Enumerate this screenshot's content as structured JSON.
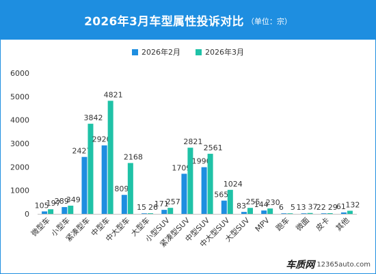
{
  "header": {
    "title": "2026年3月车型属性投诉对比",
    "unit": "（单位：宗）"
  },
  "colors": {
    "header_bg": "#1e8ee0",
    "series_feb": "#1e8ee0",
    "series_mar": "#1fc2a7"
  },
  "watermark": {
    "logo": "车质网",
    "url": "12365auto.com"
  },
  "chart_data": {
    "type": "bar",
    "categories": [
      "微型车",
      "小型车",
      "紧凑型车",
      "中型车",
      "中大型车",
      "大型车",
      "小型SUV",
      "紧凑型SUV",
      "中型SUV",
      "中大型SUV",
      "大型SUV",
      "MPV",
      "跑车",
      "微面",
      "皮卡",
      "其他"
    ],
    "series": [
      {
        "name": "2026年2月",
        "values": [
          105,
          289,
          2427,
          2920,
          809,
          15,
          171,
          1709,
          1990,
          565,
          83,
          144,
          6,
          13,
          22,
          61
        ]
      },
      {
        "name": "2026年3月",
        "values": [
          197,
          349,
          3842,
          4821,
          2168,
          26,
          257,
          2821,
          2561,
          1024,
          255,
          230,
          5,
          37,
          29,
          132
        ]
      }
    ],
    "ylim": [
      0,
      6000
    ],
    "yticks": [
      0,
      1000,
      2000,
      3000,
      4000,
      5000,
      6000
    ],
    "xlabel": "",
    "ylabel": "",
    "legend": "top-center",
    "grid": false
  }
}
